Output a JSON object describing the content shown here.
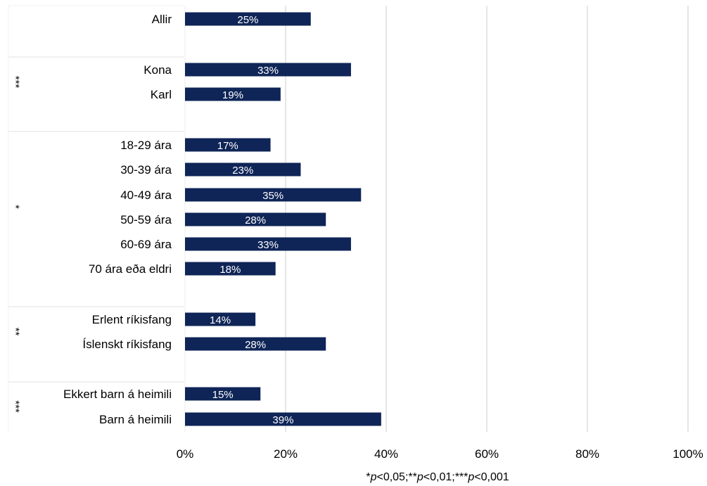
{
  "chart_data": {
    "type": "bar",
    "orientation": "horizontal",
    "categories": [
      "Allir",
      "Kona",
      "Karl",
      "18-29 ára",
      "30-39 ára",
      "40-49 ára",
      "50-59 ára",
      "60-69 ára",
      "70 ára eða eldri",
      "Erlent ríkisfang",
      "Íslenskt ríkisfang",
      "Ekkert barn á heimili",
      "Barn á heimili"
    ],
    "values": [
      25,
      33,
      19,
      17,
      23,
      35,
      28,
      33,
      18,
      14,
      28,
      15,
      39
    ],
    "value_labels": [
      "25%",
      "33%",
      "19%",
      "17%",
      "23%",
      "35%",
      "28%",
      "33%",
      "18%",
      "14%",
      "28%",
      "15%",
      "39%"
    ],
    "groups": [
      {
        "items": [
          0
        ],
        "significance": ""
      },
      {
        "items": [
          1,
          2
        ],
        "significance": "***"
      },
      {
        "items": [
          3,
          4,
          5,
          6,
          7,
          8
        ],
        "significance": "*"
      },
      {
        "items": [
          9,
          10
        ],
        "significance": "**"
      },
      {
        "items": [
          11,
          12
        ],
        "significance": "***"
      }
    ],
    "xlim": [
      0,
      100
    ],
    "xticks": [
      0,
      20,
      40,
      60,
      80,
      100
    ],
    "xtick_labels": [
      "0%",
      "20%",
      "40%",
      "60%",
      "80%",
      "100%"
    ],
    "grid": "vertical",
    "bar_color": "#0f2557",
    "grid_color": "#d9d9d9",
    "title": "",
    "xlabel": "",
    "ylabel": ""
  },
  "footnote": {
    "parts": [
      {
        "text": "*",
        "italic": false
      },
      {
        "text": "p",
        "italic": true
      },
      {
        "text": "<0,05;**",
        "italic": false
      },
      {
        "text": "p",
        "italic": true
      },
      {
        "text": "<0,01;***",
        "italic": false
      },
      {
        "text": "p",
        "italic": true
      },
      {
        "text": "<0,001",
        "italic": false
      }
    ]
  }
}
